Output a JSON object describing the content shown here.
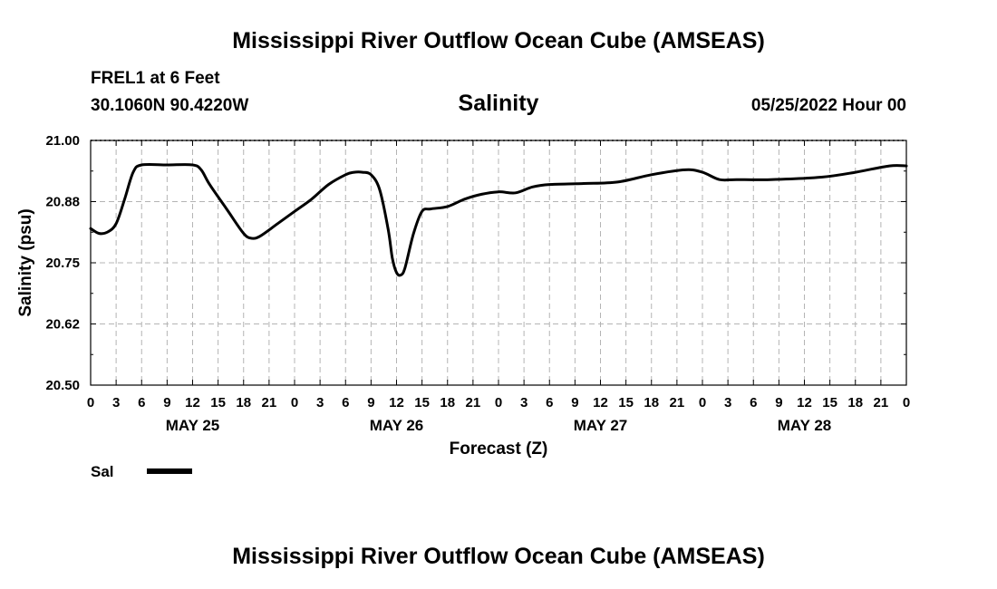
{
  "header": {
    "title": "Mississippi River Outflow Ocean Cube (AMSEAS)",
    "station": "FREL1 at 6 Feet",
    "coords": "30.1060N  90.4220W",
    "variable": "Salinity",
    "datetime": "05/25/2022 Hour 00"
  },
  "footer": {
    "title": "Mississippi River Outflow Ocean Cube (AMSEAS)"
  },
  "legend": {
    "label": "Sal"
  },
  "chart_data": {
    "type": "line",
    "title": "Salinity",
    "xlabel": "Forecast (Z)",
    "ylabel": "Salinity (psu)",
    "ylim": [
      20.5,
      21.0
    ],
    "xlim": [
      0,
      96
    ],
    "grid": true,
    "yticks": [
      "21.00",
      "20.88",
      "20.75",
      "20.62",
      "20.50"
    ],
    "ytick_values": [
      21.0,
      20.875,
      20.75,
      20.625,
      20.5
    ],
    "xtick_labels": [
      "0",
      "3",
      "6",
      "9",
      "12",
      "15",
      "18",
      "21",
      "0",
      "3",
      "6",
      "9",
      "12",
      "15",
      "18",
      "21",
      "0",
      "3",
      "6",
      "9",
      "12",
      "15",
      "18",
      "21",
      "0",
      "3",
      "6",
      "9",
      "12",
      "15",
      "18",
      "21",
      "0"
    ],
    "date_labels": [
      {
        "label": "MAY 25",
        "hour": 12
      },
      {
        "label": "MAY 26",
        "hour": 36
      },
      {
        "label": "MAY 27",
        "hour": 60
      },
      {
        "label": "MAY 28",
        "hour": 84
      }
    ],
    "series": [
      {
        "name": "Sal",
        "x": [
          0,
          1,
          2,
          3,
          4,
          5,
          6,
          9,
          12,
          13,
          14,
          16,
          18,
          19,
          20,
          22,
          24,
          26,
          28,
          30,
          31,
          32,
          33,
          34,
          35,
          35.5,
          36,
          36.5,
          37,
          38,
          39,
          40,
          42,
          44,
          46,
          48,
          50,
          52,
          54,
          58,
          62,
          66,
          70,
          72,
          74,
          76,
          80,
          86,
          90,
          94,
          96
        ],
        "values": [
          20.82,
          20.81,
          20.813,
          20.83,
          20.88,
          20.935,
          20.95,
          20.95,
          20.95,
          20.94,
          20.91,
          20.86,
          20.81,
          20.8,
          20.805,
          20.83,
          20.855,
          20.88,
          20.91,
          20.93,
          20.935,
          20.935,
          20.93,
          20.9,
          20.82,
          20.76,
          20.73,
          20.725,
          20.74,
          20.81,
          20.855,
          20.86,
          20.865,
          20.88,
          20.89,
          20.895,
          20.893,
          20.905,
          20.91,
          20.912,
          20.915,
          20.93,
          20.94,
          20.935,
          20.92,
          20.92,
          20.92,
          20.925,
          20.935,
          20.948,
          20.948
        ]
      }
    ]
  }
}
